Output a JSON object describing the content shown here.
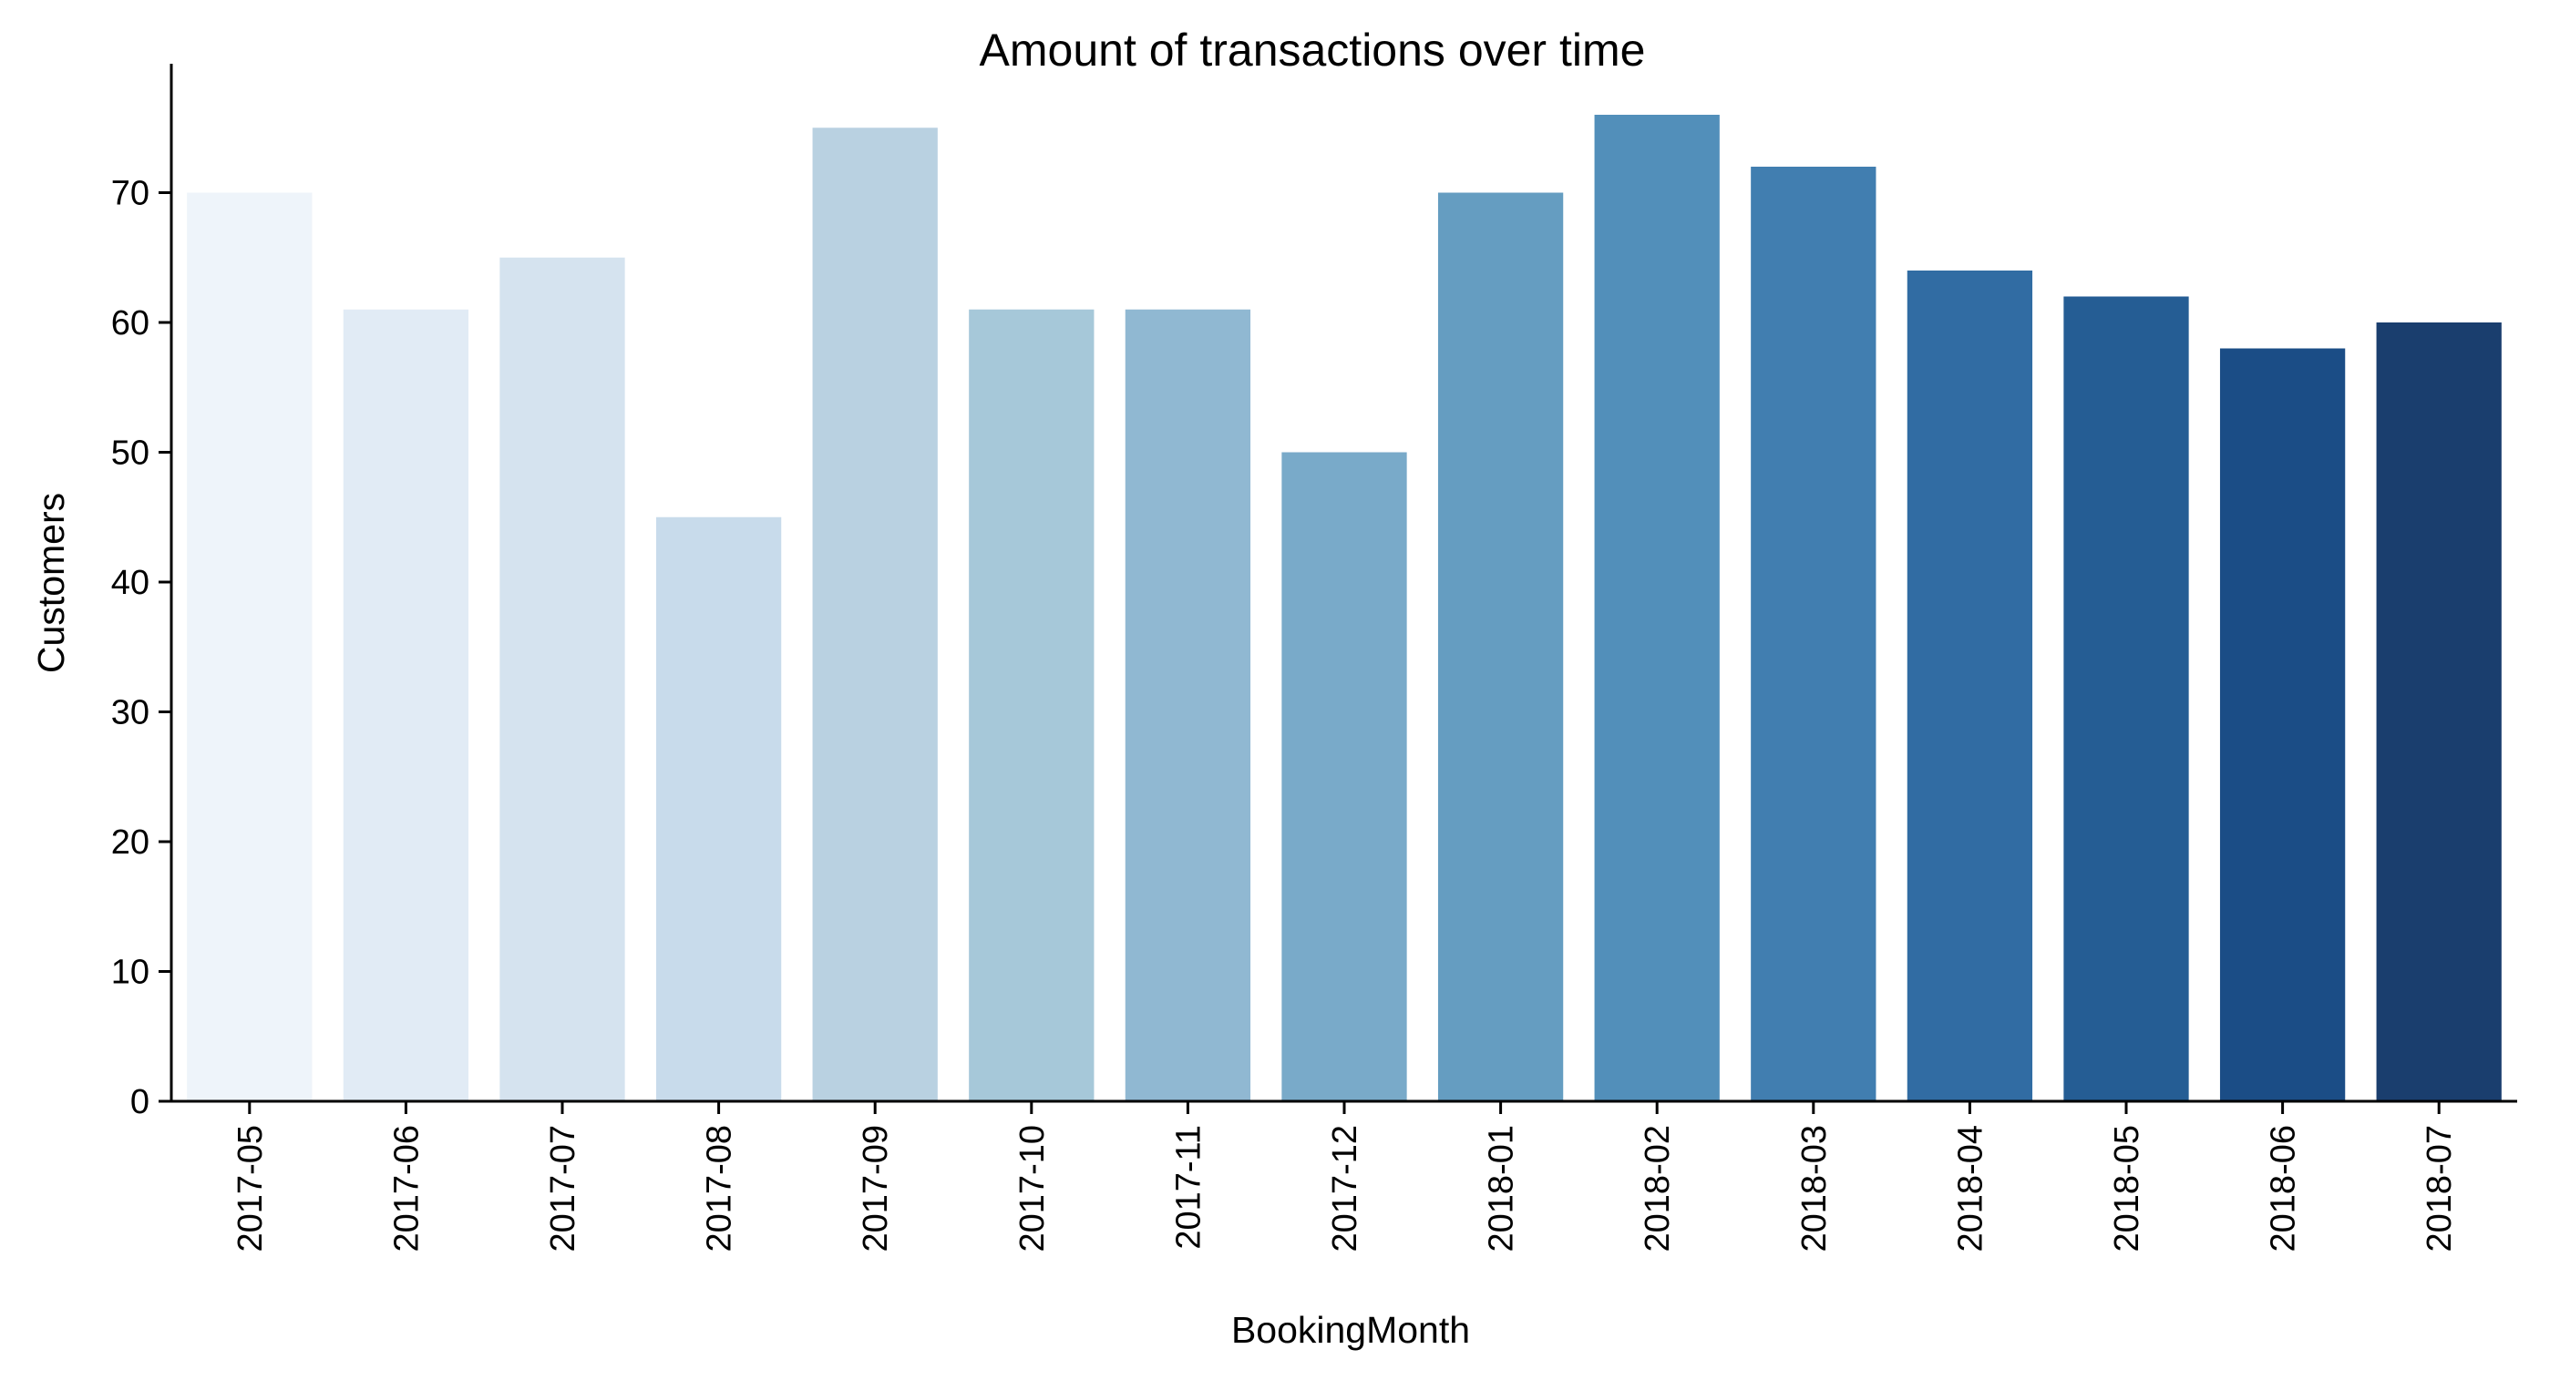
{
  "chart_data": {
    "type": "bar",
    "title": "Amount of transactions over time",
    "xlabel": "BookingMonth",
    "ylabel": "Customers",
    "categories": [
      "2017-05",
      "2017-06",
      "2017-07",
      "2017-08",
      "2017-09",
      "2017-10",
      "2017-11",
      "2017-12",
      "2018-01",
      "2018-02",
      "2018-03",
      "2018-04",
      "2018-05",
      "2018-06",
      "2018-07"
    ],
    "values": [
      70,
      61,
      65,
      45,
      75,
      61,
      61,
      50,
      70,
      76,
      72,
      64,
      62,
      58,
      60
    ],
    "colors": [
      "#eef4fa",
      "#e1ebf5",
      "#d5e3ef",
      "#c8dbeb",
      "#b9d1e1",
      "#a6c8d9",
      "#90b8d2",
      "#79aac9",
      "#659dc1",
      "#528fba",
      "#417eb0",
      "#316ca3",
      "#255d94",
      "#1b4d86",
      "#1a3e6e"
    ],
    "ylim": [
      0,
      80
    ],
    "yticks": [
      0,
      10,
      20,
      30,
      40,
      50,
      60,
      70
    ],
    "grid": false,
    "legend": "none"
  }
}
